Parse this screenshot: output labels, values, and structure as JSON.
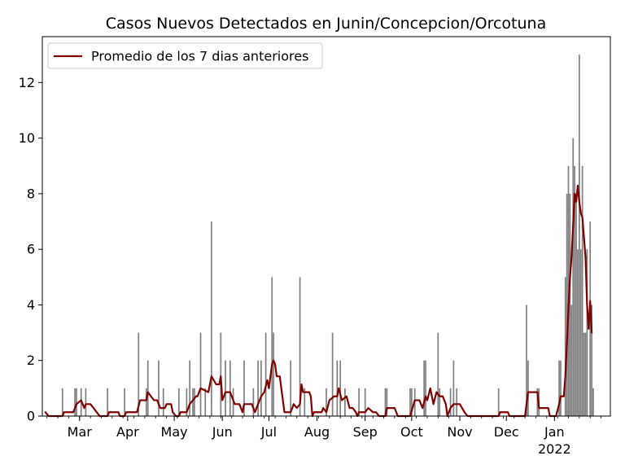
{
  "chart_data": {
    "type": "bar",
    "title": "Casos Nuevos Detectados en Junin/Concepcion/Orcotuna",
    "xlabel": "",
    "ylabel": "",
    "x_start_date": "2021-02-05",
    "x_end_date": "2022-02-06",
    "ylim": [
      0,
      13.65
    ],
    "y_ticks": [
      0,
      2,
      4,
      6,
      8,
      10,
      12
    ],
    "x_ticks": [
      {
        "date": "2021-03-01",
        "label": "Mar",
        "sub": ""
      },
      {
        "date": "2021-04-01",
        "label": "Apr",
        "sub": ""
      },
      {
        "date": "2021-05-01",
        "label": "May",
        "sub": ""
      },
      {
        "date": "2021-06-01",
        "label": "Jun",
        "sub": ""
      },
      {
        "date": "2021-07-01",
        "label": "Jul",
        "sub": ""
      },
      {
        "date": "2021-08-01",
        "label": "Aug",
        "sub": ""
      },
      {
        "date": "2021-09-01",
        "label": "Sep",
        "sub": ""
      },
      {
        "date": "2021-10-01",
        "label": "Oct",
        "sub": ""
      },
      {
        "date": "2021-11-01",
        "label": "Nov",
        "sub": ""
      },
      {
        "date": "2021-12-01",
        "label": "Dec",
        "sub": ""
      },
      {
        "date": "2022-01-01",
        "label": "Jan",
        "sub": "2022"
      }
    ],
    "grid": false,
    "legend_position": "top-left",
    "colors": {
      "bars": "#808080",
      "line": "#800000"
    },
    "series": [
      {
        "type": "bar",
        "data": [
          [
            "2021-02-18",
            1
          ],
          [
            "2021-02-26",
            1
          ],
          [
            "2021-02-27",
            1
          ],
          [
            "2021-03-02",
            1
          ],
          [
            "2021-03-05",
            1
          ],
          [
            "2021-03-19",
            1
          ],
          [
            "2021-03-30",
            1
          ],
          [
            "2021-04-08",
            3
          ],
          [
            "2021-04-13",
            1
          ],
          [
            "2021-04-14",
            2
          ],
          [
            "2021-04-21",
            2
          ],
          [
            "2021-04-24",
            1
          ],
          [
            "2021-05-04",
            1
          ],
          [
            "2021-05-09",
            1
          ],
          [
            "2021-05-11",
            2
          ],
          [
            "2021-05-13",
            1
          ],
          [
            "2021-05-14",
            1
          ],
          [
            "2021-05-18",
            3
          ],
          [
            "2021-05-21",
            1
          ],
          [
            "2021-05-25",
            7
          ],
          [
            "2021-05-31",
            3
          ],
          [
            "2021-06-03",
            2
          ],
          [
            "2021-06-06",
            2
          ],
          [
            "2021-06-08",
            1
          ],
          [
            "2021-06-15",
            2
          ],
          [
            "2021-06-21",
            1
          ],
          [
            "2021-06-24",
            2
          ],
          [
            "2021-06-26",
            2
          ],
          [
            "2021-06-29",
            3
          ],
          [
            "2021-07-03",
            5
          ],
          [
            "2021-07-04",
            3
          ],
          [
            "2021-07-15",
            2
          ],
          [
            "2021-07-21",
            5
          ],
          [
            "2021-07-24",
            1
          ],
          [
            "2021-08-07",
            1
          ],
          [
            "2021-08-11",
            3
          ],
          [
            "2021-08-14",
            2
          ],
          [
            "2021-08-16",
            2
          ],
          [
            "2021-08-19",
            1
          ],
          [
            "2021-08-28",
            1
          ],
          [
            "2021-09-01",
            1
          ],
          [
            "2021-09-14",
            1
          ],
          [
            "2021-09-15",
            1
          ],
          [
            "2021-09-30",
            1
          ],
          [
            "2021-10-01",
            1
          ],
          [
            "2021-10-03",
            1
          ],
          [
            "2021-10-09",
            2
          ],
          [
            "2021-10-10",
            2
          ],
          [
            "2021-10-18",
            3
          ],
          [
            "2021-10-19",
            1
          ],
          [
            "2021-10-26",
            1
          ],
          [
            "2021-10-28",
            2
          ],
          [
            "2021-10-30",
            1
          ],
          [
            "2021-11-26",
            1
          ],
          [
            "2021-12-14",
            4
          ],
          [
            "2021-12-15",
            2
          ],
          [
            "2021-12-21",
            1
          ],
          [
            "2021-12-22",
            1
          ],
          [
            "2022-01-04",
            2
          ],
          [
            "2022-01-05",
            2
          ],
          [
            "2022-01-08",
            5
          ],
          [
            "2022-01-09",
            8
          ],
          [
            "2022-01-10",
            9
          ],
          [
            "2022-01-11",
            8
          ],
          [
            "2022-01-12",
            4
          ],
          [
            "2022-01-13",
            10
          ],
          [
            "2022-01-14",
            9
          ],
          [
            "2022-01-15",
            8
          ],
          [
            "2022-01-16",
            6
          ],
          [
            "2022-01-17",
            13
          ],
          [
            "2022-01-18",
            6
          ],
          [
            "2022-01-19",
            9
          ],
          [
            "2022-01-20",
            3
          ],
          [
            "2022-01-21",
            3
          ],
          [
            "2022-01-22",
            6
          ],
          [
            "2022-01-24",
            7
          ],
          [
            "2022-01-25",
            4
          ],
          [
            "2022-01-26",
            1
          ]
        ]
      },
      {
        "type": "line",
        "name": "Promedio de los 7 dias anteriores",
        "data": [
          [
            "2021-02-07",
            0.14
          ],
          [
            "2021-02-09",
            0.0
          ],
          [
            "2021-02-18",
            0.0
          ],
          [
            "2021-02-19",
            0.14
          ],
          [
            "2021-02-25",
            0.14
          ],
          [
            "2021-02-27",
            0.43
          ],
          [
            "2021-03-02",
            0.57
          ],
          [
            "2021-03-04",
            0.29
          ],
          [
            "2021-03-05",
            0.43
          ],
          [
            "2021-03-08",
            0.43
          ],
          [
            "2021-03-10",
            0.29
          ],
          [
            "2021-03-12",
            0.14
          ],
          [
            "2021-03-14",
            0.0
          ],
          [
            "2021-03-19",
            0.0
          ],
          [
            "2021-03-20",
            0.14
          ],
          [
            "2021-03-26",
            0.14
          ],
          [
            "2021-03-27",
            0.0
          ],
          [
            "2021-03-30",
            0.0
          ],
          [
            "2021-03-31",
            0.14
          ],
          [
            "2021-04-07",
            0.14
          ],
          [
            "2021-04-09",
            0.57
          ],
          [
            "2021-04-13",
            0.57
          ],
          [
            "2021-04-14",
            0.86
          ],
          [
            "2021-04-16",
            0.71
          ],
          [
            "2021-04-18",
            0.57
          ],
          [
            "2021-04-20",
            0.57
          ],
          [
            "2021-04-22",
            0.29
          ],
          [
            "2021-04-25",
            0.29
          ],
          [
            "2021-04-26",
            0.43
          ],
          [
            "2021-04-29",
            0.43
          ],
          [
            "2021-04-30",
            0.14
          ],
          [
            "2021-05-02",
            0.0
          ],
          [
            "2021-05-04",
            0.0
          ],
          [
            "2021-05-05",
            0.14
          ],
          [
            "2021-05-09",
            0.14
          ],
          [
            "2021-05-11",
            0.43
          ],
          [
            "2021-05-13",
            0.57
          ],
          [
            "2021-05-15",
            0.71
          ],
          [
            "2021-05-16",
            0.71
          ],
          [
            "2021-05-18",
            1.0
          ],
          [
            "2021-05-23",
            0.86
          ],
          [
            "2021-05-25",
            1.43
          ],
          [
            "2021-05-28",
            1.14
          ],
          [
            "2021-05-30",
            1.14
          ],
          [
            "2021-05-31",
            1.43
          ],
          [
            "2021-06-01",
            0.57
          ],
          [
            "2021-06-03",
            0.86
          ],
          [
            "2021-06-06",
            0.86
          ],
          [
            "2021-06-09",
            0.43
          ],
          [
            "2021-06-12",
            0.43
          ],
          [
            "2021-06-14",
            0.14
          ],
          [
            "2021-06-15",
            0.43
          ],
          [
            "2021-06-20",
            0.43
          ],
          [
            "2021-06-22",
            0.14
          ],
          [
            "2021-06-24",
            0.43
          ],
          [
            "2021-06-26",
            0.71
          ],
          [
            "2021-06-28",
            0.86
          ],
          [
            "2021-06-30",
            1.29
          ],
          [
            "2021-07-01",
            1.0
          ],
          [
            "2021-07-03",
            1.86
          ],
          [
            "2021-07-04",
            2.0
          ],
          [
            "2021-07-05",
            1.86
          ],
          [
            "2021-07-06",
            1.43
          ],
          [
            "2021-07-08",
            1.43
          ],
          [
            "2021-07-10",
            0.57
          ],
          [
            "2021-07-11",
            0.14
          ],
          [
            "2021-07-15",
            0.14
          ],
          [
            "2021-07-17",
            0.43
          ],
          [
            "2021-07-19",
            0.29
          ],
          [
            "2021-07-21",
            0.43
          ],
          [
            "2021-07-22",
            1.14
          ],
          [
            "2021-07-23",
            0.86
          ],
          [
            "2021-07-27",
            0.86
          ],
          [
            "2021-07-28",
            0.71
          ],
          [
            "2021-07-29",
            0.0
          ],
          [
            "2021-07-30",
            0.14
          ],
          [
            "2021-08-04",
            0.14
          ],
          [
            "2021-08-05",
            0.29
          ],
          [
            "2021-08-07",
            0.14
          ],
          [
            "2021-08-09",
            0.57
          ],
          [
            "2021-08-12",
            0.71
          ],
          [
            "2021-08-14",
            0.71
          ],
          [
            "2021-08-15",
            1.0
          ],
          [
            "2021-08-17",
            0.57
          ],
          [
            "2021-08-20",
            0.71
          ],
          [
            "2021-08-22",
            0.29
          ],
          [
            "2021-08-24",
            0.29
          ],
          [
            "2021-08-26",
            0.14
          ],
          [
            "2021-08-27",
            0.0
          ],
          [
            "2021-08-28",
            0.14
          ],
          [
            "2021-09-01",
            0.14
          ],
          [
            "2021-09-03",
            0.29
          ],
          [
            "2021-09-06",
            0.14
          ],
          [
            "2021-09-08",
            0.14
          ],
          [
            "2021-09-10",
            0.0
          ],
          [
            "2021-09-14",
            0.0
          ],
          [
            "2021-09-15",
            0.29
          ],
          [
            "2021-09-20",
            0.29
          ],
          [
            "2021-09-22",
            0.0
          ],
          [
            "2021-09-30",
            0.0
          ],
          [
            "2021-10-03",
            0.57
          ],
          [
            "2021-10-06",
            0.57
          ],
          [
            "2021-10-08",
            0.29
          ],
          [
            "2021-10-10",
            0.71
          ],
          [
            "2021-10-11",
            0.57
          ],
          [
            "2021-10-13",
            1.0
          ],
          [
            "2021-10-15",
            0.43
          ],
          [
            "2021-10-17",
            0.86
          ],
          [
            "2021-10-19",
            0.71
          ],
          [
            "2021-10-21",
            0.71
          ],
          [
            "2021-10-23",
            0.43
          ],
          [
            "2021-10-24",
            0.0
          ],
          [
            "2021-10-26",
            0.29
          ],
          [
            "2021-10-28",
            0.43
          ],
          [
            "2021-11-01",
            0.43
          ],
          [
            "2021-11-04",
            0.14
          ],
          [
            "2021-11-06",
            0.0
          ],
          [
            "2021-11-26",
            0.0
          ],
          [
            "2021-11-27",
            0.14
          ],
          [
            "2021-12-02",
            0.14
          ],
          [
            "2021-12-03",
            0.0
          ],
          [
            "2021-12-13",
            0.0
          ],
          [
            "2021-12-15",
            0.86
          ],
          [
            "2021-12-21",
            0.86
          ],
          [
            "2021-12-22",
            0.29
          ],
          [
            "2021-12-28",
            0.29
          ],
          [
            "2021-12-29",
            0.0
          ],
          [
            "2022-01-02",
            0.0
          ],
          [
            "2022-01-04",
            0.43
          ],
          [
            "2022-01-05",
            0.71
          ],
          [
            "2022-01-07",
            0.71
          ],
          [
            "2022-01-08",
            1.43
          ],
          [
            "2022-01-09",
            2.57
          ],
          [
            "2022-01-10",
            3.86
          ],
          [
            "2022-01-11",
            5.0
          ],
          [
            "2022-01-12",
            5.71
          ],
          [
            "2022-01-13",
            6.86
          ],
          [
            "2022-01-14",
            8.0
          ],
          [
            "2022-01-15",
            7.71
          ],
          [
            "2022-01-16",
            8.29
          ],
          [
            "2022-01-17",
            7.71
          ],
          [
            "2022-01-18",
            7.29
          ],
          [
            "2022-01-19",
            7.14
          ],
          [
            "2022-01-20",
            6.43
          ],
          [
            "2022-01-21",
            5.71
          ],
          [
            "2022-01-22",
            4.0
          ],
          [
            "2022-01-23",
            3.14
          ],
          [
            "2022-01-24",
            4.14
          ],
          [
            "2022-01-25",
            3.0
          ]
        ]
      }
    ]
  }
}
